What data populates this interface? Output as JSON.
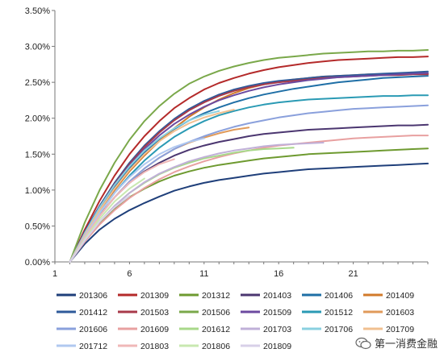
{
  "chart_data": {
    "type": "line",
    "x_ticks": [
      "1",
      "6",
      "11",
      "16",
      "21"
    ],
    "y_ticks": [
      "0.00%",
      "0.50%",
      "1.00%",
      "1.50%",
      "2.00%",
      "2.50%",
      "3.00%",
      "3.50%"
    ],
    "ylim": [
      0,
      3.5
    ],
    "xlim": [
      1,
      26
    ],
    "legend_position": "bottom",
    "series": [
      {
        "name": "201306",
        "color": "#1f3f7a",
        "values": [
          0.0,
          0.25,
          0.45,
          0.6,
          0.72,
          0.82,
          0.91,
          0.99,
          1.05,
          1.1,
          1.14,
          1.17,
          1.2,
          1.23,
          1.25,
          1.27,
          1.29,
          1.3,
          1.31,
          1.32,
          1.33,
          1.34,
          1.35,
          1.36,
          1.37
        ]
      },
      {
        "name": "201309",
        "color": "#b42a2a",
        "values": [
          0.0,
          0.45,
          0.85,
          1.2,
          1.5,
          1.75,
          1.96,
          2.14,
          2.28,
          2.4,
          2.49,
          2.56,
          2.62,
          2.67,
          2.71,
          2.74,
          2.77,
          2.79,
          2.81,
          2.82,
          2.83,
          2.84,
          2.85,
          2.85,
          2.86
        ]
      },
      {
        "name": "201312",
        "color": "#6e9a30",
        "values": [
          0.0,
          0.3,
          0.55,
          0.74,
          0.9,
          1.02,
          1.12,
          1.2,
          1.26,
          1.31,
          1.35,
          1.38,
          1.41,
          1.44,
          1.46,
          1.48,
          1.5,
          1.51,
          1.52,
          1.53,
          1.54,
          1.55,
          1.56,
          1.57,
          1.58
        ]
      },
      {
        "name": "201403",
        "color": "#4b3670",
        "values": [
          0.0,
          0.35,
          0.65,
          0.9,
          1.1,
          1.26,
          1.38,
          1.48,
          1.56,
          1.62,
          1.67,
          1.71,
          1.75,
          1.78,
          1.8,
          1.82,
          1.84,
          1.85,
          1.86,
          1.87,
          1.88,
          1.89,
          1.9,
          1.9,
          1.91
        ]
      },
      {
        "name": "201406",
        "color": "#1f6fa6",
        "values": [
          0.0,
          0.4,
          0.75,
          1.05,
          1.3,
          1.52,
          1.7,
          1.85,
          1.97,
          2.07,
          2.15,
          2.22,
          2.28,
          2.33,
          2.37,
          2.41,
          2.44,
          2.47,
          2.5,
          2.52,
          2.54,
          2.56,
          2.57,
          2.58,
          2.59
        ]
      },
      {
        "name": "201409",
        "color": "#d27a2a",
        "values": [
          0.0,
          0.38,
          0.72,
          1.0,
          1.26,
          1.48,
          1.68,
          1.86,
          2.02,
          2.15,
          2.26,
          2.35,
          2.42,
          2.47,
          2.51,
          2.54,
          2.56,
          2.58,
          2.59,
          2.6,
          2.61,
          2.61,
          2.62,
          2.62,
          2.62
        ]
      },
      {
        "name": "201412",
        "color": "#2e5a9a",
        "values": [
          0.0,
          0.42,
          0.78,
          1.1,
          1.38,
          1.62,
          1.82,
          1.99,
          2.13,
          2.24,
          2.33,
          2.4,
          2.45,
          2.49,
          2.52,
          2.54,
          2.56,
          2.58,
          2.59,
          2.6,
          2.61,
          2.62,
          2.63,
          2.64,
          2.65
        ]
      },
      {
        "name": "201503",
        "color": "#a83a4a",
        "values": [
          0.0,
          0.4,
          0.76,
          1.08,
          1.36,
          1.6,
          1.8,
          1.97,
          2.11,
          2.22,
          2.31,
          2.38,
          2.43,
          2.47,
          2.5,
          2.52,
          2.54,
          2.56,
          2.57,
          2.58,
          2.59,
          2.6,
          2.6,
          2.61,
          2.61
        ]
      },
      {
        "name": "201506",
        "color": "#7aa84a",
        "values": [
          0.0,
          0.55,
          1.0,
          1.38,
          1.7,
          1.96,
          2.17,
          2.34,
          2.48,
          2.58,
          2.66,
          2.72,
          2.77,
          2.81,
          2.84,
          2.86,
          2.88,
          2.9,
          2.91,
          2.92,
          2.93,
          2.93,
          2.94,
          2.94,
          2.95
        ]
      },
      {
        "name": "201509",
        "color": "#6c4aa0",
        "values": [
          0.0,
          0.4,
          0.76,
          1.07,
          1.34,
          1.57,
          1.76,
          1.92,
          2.05,
          2.16,
          2.25,
          2.32,
          2.38,
          2.43,
          2.47,
          2.5,
          2.53,
          2.55,
          2.57,
          2.58,
          2.59,
          2.6,
          2.61,
          2.62,
          2.63
        ]
      },
      {
        "name": "201512",
        "color": "#2a9ab4",
        "values": [
          0.0,
          0.36,
          0.68,
          0.96,
          1.2,
          1.41,
          1.59,
          1.74,
          1.86,
          1.96,
          2.04,
          2.1,
          2.15,
          2.19,
          2.22,
          2.24,
          2.26,
          2.27,
          2.28,
          2.29,
          2.3,
          2.31,
          2.31,
          2.32,
          2.32
        ]
      },
      {
        "name": "201603",
        "color": "#e09a5a",
        "values": [
          0.0,
          0.34,
          0.64,
          0.9,
          1.12,
          1.3,
          1.45,
          1.57,
          1.66,
          1.73,
          1.79,
          1.84,
          1.87
        ]
      },
      {
        "name": "201606",
        "color": "#8aa0dc",
        "values": [
          0.0,
          0.34,
          0.64,
          0.9,
          1.12,
          1.3,
          1.45,
          1.57,
          1.67,
          1.75,
          1.82,
          1.88,
          1.93,
          1.97,
          2.01,
          2.04,
          2.07,
          2.09,
          2.11,
          2.13,
          2.14,
          2.15,
          2.16,
          2.17,
          2.18
        ]
      },
      {
        "name": "201609",
        "color": "#e8a0a0",
        "values": [
          0.0,
          0.28,
          0.52,
          0.72,
          0.89,
          1.03,
          1.15,
          1.25,
          1.33,
          1.4,
          1.46,
          1.51,
          1.55,
          1.59,
          1.62,
          1.64,
          1.66,
          1.68,
          1.7,
          1.72,
          1.73,
          1.74,
          1.75,
          1.76,
          1.76
        ]
      },
      {
        "name": "201612",
        "color": "#a8d88a",
        "values": [
          0.0,
          0.3,
          0.56,
          0.78,
          0.96,
          1.1,
          1.22,
          1.31,
          1.38,
          1.44,
          1.48,
          1.52,
          1.55,
          1.57,
          1.58,
          1.59
        ]
      },
      {
        "name": "201703",
        "color": "#c0b0d8",
        "values": [
          0.0,
          0.3,
          0.56,
          0.78,
          0.96,
          1.11,
          1.23,
          1.32,
          1.4,
          1.46,
          1.51,
          1.55,
          1.58,
          1.61,
          1.63,
          1.64,
          1.65,
          1.66
        ]
      },
      {
        "name": "201706",
        "color": "#8ad0e0",
        "values": [
          0.0,
          0.4,
          0.76,
          1.07,
          1.33,
          1.55,
          1.72,
          1.86,
          1.97,
          2.05,
          2.1
        ]
      },
      {
        "name": "201709",
        "color": "#f0c090",
        "values": [
          0.0,
          0.38,
          0.72,
          1.02,
          1.28,
          1.5,
          1.68,
          1.82,
          1.93,
          2.01,
          2.07,
          2.12
        ]
      },
      {
        "name": "201712",
        "color": "#b0c8f0",
        "values": [
          0.0,
          0.36,
          0.68,
          0.96,
          1.18,
          1.36,
          1.5,
          1.6,
          1.67,
          1.72
        ]
      },
      {
        "name": "201803",
        "color": "#f0b8b8",
        "values": [
          0.0,
          0.34,
          0.64,
          0.9,
          1.1,
          1.25,
          1.36,
          1.43
        ]
      },
      {
        "name": "201806",
        "color": "#c8e8b0",
        "values": [
          0.0,
          0.32,
          0.6,
          0.84,
          1.02,
          1.16
        ]
      },
      {
        "name": "201809",
        "color": "#d8d0e8",
        "values": [
          0.0,
          0.3,
          0.56,
          0.76,
          0.92
        ]
      }
    ]
  },
  "watermark": {
    "text": "第一消费金融"
  }
}
